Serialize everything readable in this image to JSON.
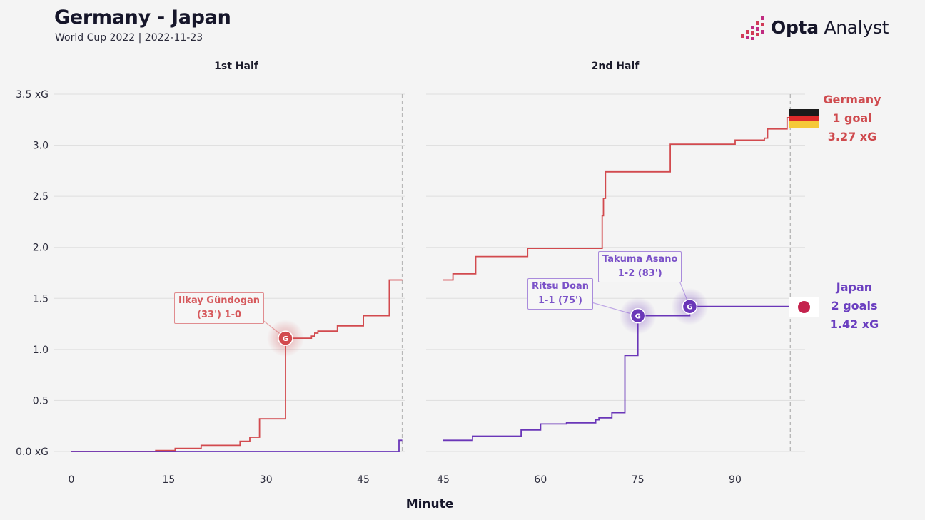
{
  "header": {
    "title": "Germany - Japan",
    "subtitle": "World Cup 2022 | 2022-11-23",
    "logo_bold": "Opta",
    "logo_light": "Analyst"
  },
  "colors": {
    "germany": "#d24a4e",
    "japan": "#6a36b8",
    "grid": "#dedede",
    "background": "#f4f4f4"
  },
  "icons": {
    "logo_mark": "pixel-bars-icon",
    "germany_flag": "germany-flag-icon",
    "japan_flag": "japan-flag-icon",
    "goal_marker": "goal-marker-icon"
  },
  "teams": {
    "germany": {
      "name": "Germany",
      "goals": "1 goal",
      "xg": "3.27 xG"
    },
    "japan": {
      "name": "Japan",
      "goals": "2 goals",
      "xg": "1.42 xG"
    }
  },
  "goals": [
    {
      "team": "germany",
      "player": "Ilkay Gündogan",
      "detail": "(33') 1-0",
      "marker": "G"
    },
    {
      "team": "japan",
      "player": "Ritsu Doan",
      "detail": "1-1 (75')",
      "marker": "G"
    },
    {
      "team": "japan",
      "player": "Takuma Asano",
      "detail": "1-2 (83')",
      "marker": "G"
    }
  ],
  "chart_data": {
    "type": "line",
    "title": "Germany - Japan",
    "xlabel": "Minute",
    "ylabel": "",
    "ylim": [
      0,
      3.5
    ],
    "y_ticks": [
      0,
      0.5,
      1.0,
      1.5,
      2.0,
      2.5,
      3.0,
      3.5
    ],
    "y_tick_labels": [
      "0.0 xG",
      "0.5",
      "1.0",
      "1.5",
      "2.0",
      "2.5",
      "3.0",
      "3.5 xG"
    ],
    "step": true,
    "grid": true,
    "panels": [
      {
        "name": "1st Half",
        "xlim": [
          0,
          51
        ],
        "x_ticks": [
          0,
          15,
          30,
          45
        ],
        "end_marker": 51,
        "series": [
          {
            "name": "Germany",
            "color": "#d24a4e",
            "x": [
              0,
              13,
              16,
              20,
              26,
              27.5,
              29,
              33,
              37,
              37.5,
              38,
              41,
              45,
              49,
              51
            ],
            "y": [
              0,
              0.01,
              0.03,
              0.06,
              0.1,
              0.14,
              0.32,
              1.11,
              1.13,
              1.16,
              1.18,
              1.23,
              1.33,
              1.68,
              1.68
            ]
          },
          {
            "name": "Japan",
            "color": "#6a36b8",
            "x": [
              0,
              50.5,
              51
            ],
            "y": [
              0,
              0.11,
              0.11
            ]
          }
        ]
      },
      {
        "name": "2nd Half",
        "xlim": [
          45,
          99
        ],
        "x_ticks": [
          45,
          60,
          75,
          90
        ],
        "end_marker": 98.5,
        "series": [
          {
            "name": "Germany",
            "color": "#d24a4e",
            "x": [
              45,
              46.5,
              50,
              58,
              69.5,
              69.7,
              70,
              80,
              90,
              94.5,
              95,
              98,
              99
            ],
            "y": [
              1.68,
              1.74,
              1.91,
              1.99,
              2.31,
              2.48,
              2.74,
              3.01,
              3.05,
              3.07,
              3.16,
              3.27,
              3.27
            ]
          },
          {
            "name": "Japan",
            "color": "#6a36b8",
            "x": [
              45,
              49.5,
              57,
              60,
              64,
              68.5,
              69,
              71,
              73,
              75,
              83,
              99
            ],
            "y": [
              0.11,
              0.15,
              0.21,
              0.27,
              0.28,
              0.31,
              0.33,
              0.38,
              0.94,
              1.33,
              1.42,
              1.42
            ]
          }
        ]
      }
    ],
    "goal_events": [
      {
        "team": "Germany",
        "minute": 33,
        "xg": 1.11,
        "panel": 0
      },
      {
        "team": "Japan",
        "minute": 75,
        "xg": 1.33,
        "panel": 1
      },
      {
        "team": "Japan",
        "minute": 83,
        "xg": 1.42,
        "panel": 1
      }
    ]
  }
}
